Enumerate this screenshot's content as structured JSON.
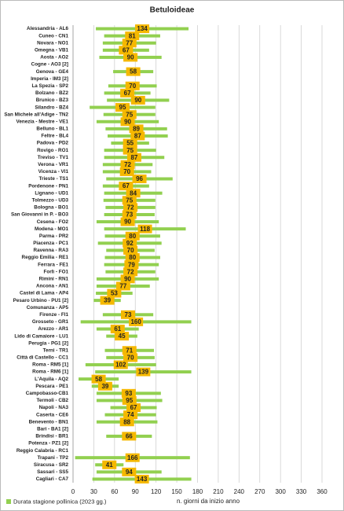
{
  "chart_data": {
    "type": "range_bar",
    "title": "Betuloideae",
    "x_label": "n. giorni da inizio anno",
    "categories": [
      "Alessandria - AL6",
      "Cuneo - CN1",
      "Novara - NO1",
      "Omegna - VB1",
      "Aosta - AO2",
      "Cogne - AO3 [2]",
      "Genova - GE4",
      "Imperia - IM3 [2]",
      "La Spezia - SP2",
      "Bolzano - BZ2",
      "Brunico - BZ3",
      "Silandro - BZ4",
      "San Michele all'Adige - TN2",
      "Venezia - Mestre - VE1",
      "Belluno - BL1",
      "Feltre - BL4",
      "Padova - PD2",
      "Rovigo - RO1",
      "Treviso - TV1",
      "Verona - VR1",
      "Vicenza - VI1",
      "Trieste - TS1",
      "Pordenone - PN1",
      "Lignano - UD1",
      "Tolmezzo - UD3",
      "Bologna - BO1",
      "San Giovanni in P. - BO3",
      "Cesena - FO2",
      "Modena - MO1",
      "Parma - PR2",
      "Piacenza - PC1",
      "Ravenna - RA3",
      "Reggio Emilia - RE1",
      "Ferrara - FE1",
      "Forlì - FO1",
      "Rimini - RN1",
      "Ancona - AN1",
      "Castel di Lama - AP4",
      "Pesaro Urbino - PU1 [2]",
      "Comunanza - AP5",
      "Firenze - FI1",
      "Grosseto - GR1",
      "Arezzo - AR1",
      "Lido di Camaiore - LU1",
      "Perugia - PG1 [2]",
      "Terni - TR1",
      "Città di Castello - CC1",
      "Roma - RM5 [1]",
      "Roma - RM6 [1]",
      "L'Aquila - AQ2",
      "Pescara - PE1",
      "Campobasso-CB1",
      "Termoli - CB2",
      "Napoli - NA3",
      "Caserta - CE6",
      "Benevento - BN1",
      "Bari - BA1 [2]",
      "Brindisi - BR1",
      "Potenza - PZ1 [2]",
      "Reggio Calabria - RC1",
      "Trapani - TP2",
      "Siracusa - SR2",
      "Sassari - SS5",
      "Cagliari - CA7"
    ],
    "series": [
      {
        "name": "Durata stagione pollinica (2023 gg.)",
        "color": "#92d050",
        "label_color": "#f5b800",
        "start": [
          33,
          45,
          43,
          43,
          38,
          null,
          58,
          null,
          51,
          45,
          49,
          24,
          44,
          34,
          47,
          50,
          55,
          45,
          45,
          43,
          43,
          48,
          43,
          45,
          44,
          47,
          45,
          34,
          45,
          46,
          36,
          48,
          46,
          45,
          47,
          34,
          34,
          33,
          30,
          null,
          43,
          11,
          34,
          48,
          null,
          46,
          48,
          18,
          32,
          8,
          27,
          34,
          34,
          54,
          46,
          34,
          null,
          48,
          null,
          null,
          3,
          32,
          34,
          28
        ],
        "values": [
          134,
          81,
          77,
          67,
          90,
          null,
          58,
          null,
          70,
          67,
          90,
          95,
          75,
          90,
          89,
          87,
          55,
          75,
          87,
          72,
          70,
          96,
          67,
          84,
          75,
          72,
          73,
          90,
          118,
          80,
          92,
          70,
          80,
          79,
          72,
          90,
          77,
          53,
          39,
          null,
          73,
          160,
          61,
          45,
          null,
          71,
          70,
          102,
          139,
          58,
          39,
          93,
          95,
          67,
          74,
          88,
          null,
          66,
          null,
          null,
          166,
          41,
          94,
          143
        ]
      }
    ],
    "xlim": [
      0,
      370
    ],
    "xticks": [
      0,
      30,
      60,
      90,
      120,
      150,
      180,
      210,
      240,
      270,
      300,
      330,
      360
    ],
    "grid": true
  }
}
